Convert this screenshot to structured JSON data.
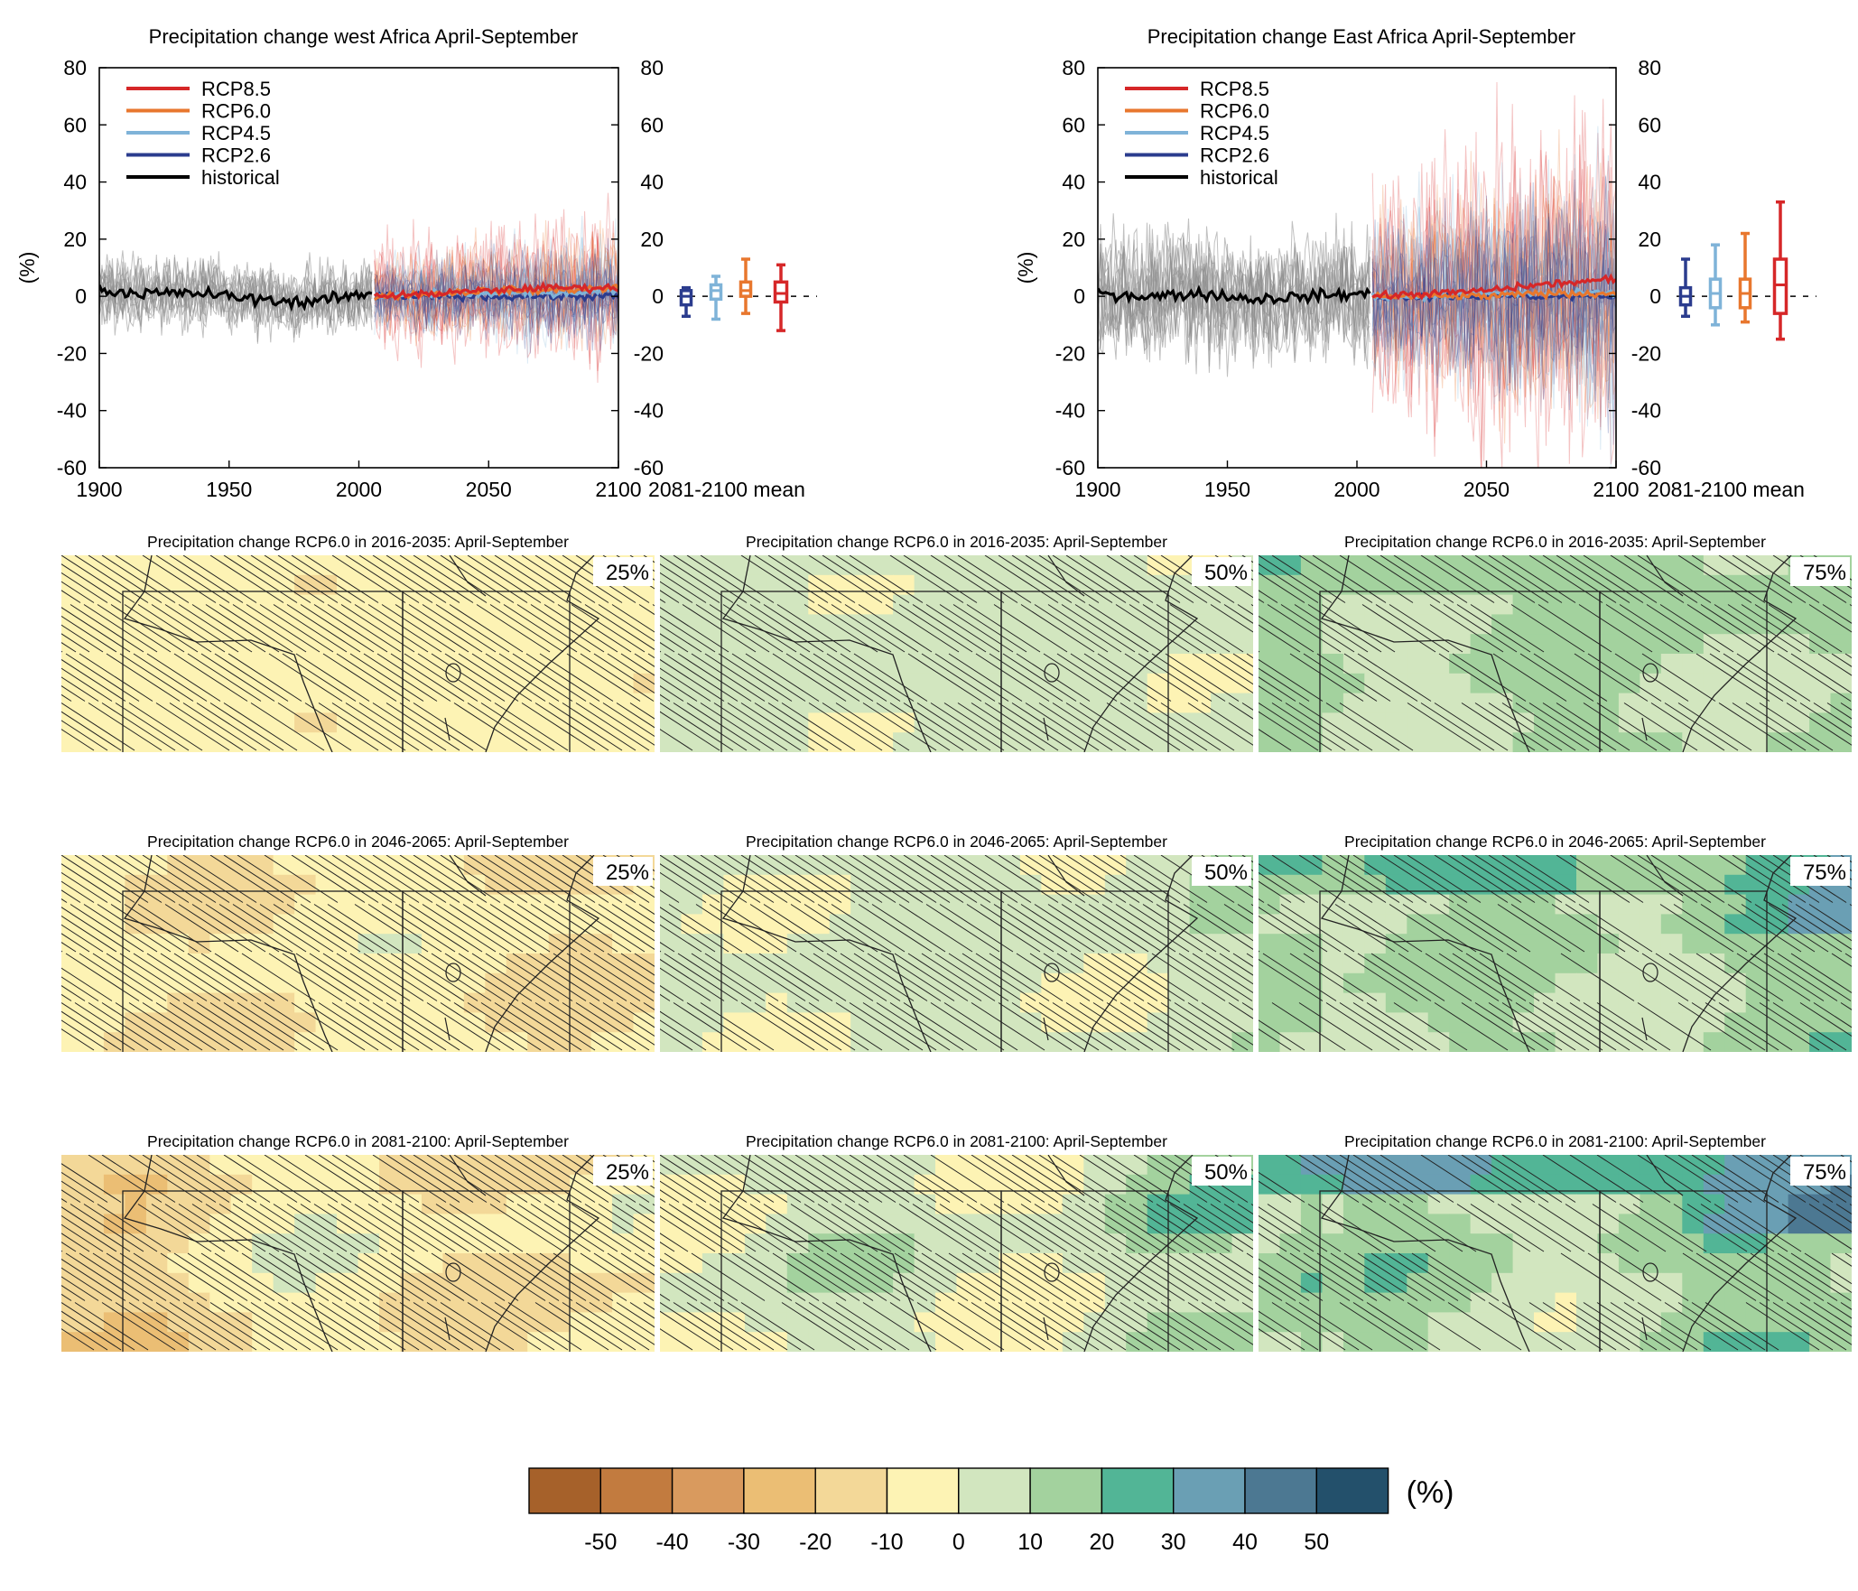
{
  "colors": {
    "rcp85": "#d62728",
    "rcp60": "#e8772e",
    "rcp45": "#7fb3d8",
    "rcp26": "#2b3c8e",
    "historical": "#000000",
    "ensemble": "#8c8c8c"
  },
  "colorbar": {
    "colors": [
      "#a6612a",
      "#c27b3f",
      "#d99a5e",
      "#ebbe74",
      "#f3d898",
      "#fdf3b4",
      "#d2e6bf",
      "#a3d29e",
      "#52b596",
      "#6a9fb4",
      "#4c7892",
      "#23506b"
    ],
    "ticks": [
      "-50",
      "-40",
      "-30",
      "-20",
      "-10",
      "0",
      "10",
      "20",
      "30",
      "40",
      "50"
    ],
    "unit": "(%)"
  },
  "timeseries_panels": [
    {
      "title": "Precipitation change west Africa April-September",
      "ylabel": "(%)",
      "yticks": [
        "80",
        "60",
        "40",
        "20",
        "0",
        "-20",
        "-40",
        "-60"
      ],
      "xticks": [
        "1900",
        "1950",
        "2000",
        "2050",
        "2100"
      ],
      "mean_label": "2081-2100 mean",
      "legend": [
        "RCP8.5",
        "RCP6.0",
        "RCP4.5",
        "RCP2.6",
        "historical"
      ]
    },
    {
      "title": "Precipitation change East Africa April-September",
      "ylabel": "(%)",
      "yticks": [
        "80",
        "60",
        "40",
        "20",
        "0",
        "-20",
        "-40",
        "-60"
      ],
      "xticks": [
        "1900",
        "1950",
        "2000",
        "2050",
        "2100"
      ],
      "mean_label": "2081-2100 mean",
      "legend": [
        "RCP8.5",
        "RCP6.0",
        "RCP4.5",
        "RCP2.6",
        "historical"
      ]
    }
  ],
  "map_titles": [
    "Precipitation change RCP6.0 in 2016-2035: April-September",
    "Precipitation change RCP6.0 in 2046-2065: April-September",
    "Precipitation change RCP6.0 in 2081-2100: April-September"
  ],
  "percentile_labels": [
    "25%",
    "50%",
    "75%"
  ],
  "chart_data": [
    {
      "type": "line",
      "title": "Precipitation change west Africa April-September",
      "xlabel": "",
      "ylabel": "(%)",
      "xlim": [
        1900,
        2100
      ],
      "ylim": [
        -60,
        80
      ],
      "legend_position": "top-left",
      "series": [
        {
          "name": "historical",
          "x": [
            1900,
            1920,
            1940,
            1960,
            1980,
            2005
          ],
          "y": [
            2,
            1,
            1,
            -1,
            -2,
            1
          ]
        },
        {
          "name": "RCP2.6",
          "x": [
            2006,
            2030,
            2050,
            2070,
            2100
          ],
          "y": [
            0,
            0,
            0,
            0,
            0
          ]
        },
        {
          "name": "RCP4.5",
          "x": [
            2006,
            2030,
            2050,
            2070,
            2100
          ],
          "y": [
            0,
            1,
            1,
            1,
            2
          ]
        },
        {
          "name": "RCP6.0",
          "x": [
            2006,
            2030,
            2050,
            2070,
            2100
          ],
          "y": [
            0,
            1,
            2,
            2,
            3
          ]
        },
        {
          "name": "RCP8.5",
          "x": [
            2006,
            2030,
            2050,
            2070,
            2100
          ],
          "y": [
            0,
            1,
            2,
            3,
            3
          ]
        }
      ],
      "box_2081_2100_mean": [
        {
          "name": "RCP2.6",
          "whisker_low": -7,
          "q1": -3,
          "median": 0,
          "q3": 2,
          "whisker_high": 3
        },
        {
          "name": "RCP4.5",
          "whisker_low": -8,
          "q1": -1,
          "median": 2,
          "q3": 4,
          "whisker_high": 7
        },
        {
          "name": "RCP6.0",
          "whisker_low": -6,
          "q1": 0,
          "median": 2,
          "q3": 5,
          "whisker_high": 13
        },
        {
          "name": "RCP8.5",
          "whisker_low": -12,
          "q1": -2,
          "median": 1,
          "q3": 5,
          "whisker_high": 11
        }
      ]
    },
    {
      "type": "line",
      "title": "Precipitation change East Africa April-September",
      "xlabel": "",
      "ylabel": "(%)",
      "xlim": [
        1900,
        2100
      ],
      "ylim": [
        -60,
        80
      ],
      "legend_position": "top-left",
      "series": [
        {
          "name": "historical",
          "x": [
            1900,
            1920,
            1940,
            1960,
            1980,
            2005
          ],
          "y": [
            1,
            0,
            1,
            -1,
            0,
            1
          ]
        },
        {
          "name": "RCP2.6",
          "x": [
            2006,
            2030,
            2050,
            2070,
            2100
          ],
          "y": [
            0,
            0,
            0,
            0,
            0
          ]
        },
        {
          "name": "RCP4.5",
          "x": [
            2006,
            2030,
            2050,
            2070,
            2100
          ],
          "y": [
            0,
            0,
            1,
            1,
            1
          ]
        },
        {
          "name": "RCP6.0",
          "x": [
            2006,
            2030,
            2050,
            2070,
            2100
          ],
          "y": [
            0,
            0,
            0,
            1,
            1
          ]
        },
        {
          "name": "RCP8.5",
          "x": [
            2006,
            2030,
            2050,
            2070,
            2100
          ],
          "y": [
            0,
            1,
            2,
            4,
            6
          ]
        }
      ],
      "box_2081_2100_mean": [
        {
          "name": "RCP2.6",
          "whisker_low": -7,
          "q1": -3,
          "median": 0,
          "q3": 3,
          "whisker_high": 13
        },
        {
          "name": "RCP4.5",
          "whisker_low": -10,
          "q1": -4,
          "median": 1,
          "q3": 6,
          "whisker_high": 18
        },
        {
          "name": "RCP6.0",
          "whisker_low": -9,
          "q1": -4,
          "median": 1,
          "q3": 6,
          "whisker_high": 22
        },
        {
          "name": "RCP8.5",
          "whisker_low": -15,
          "q1": -6,
          "median": 4,
          "q3": 13,
          "whisker_high": 33
        }
      ]
    },
    {
      "type": "heatmap",
      "title": "Precipitation change RCP6.0 in 2016-2035 / 2046-2065 / 2081-2100: April-September",
      "color_levels": [
        -50,
        -40,
        -30,
        -20,
        -10,
        0,
        10,
        20,
        30,
        40,
        50
      ],
      "unit": "(%)",
      "panels": [
        {
          "period": "2016-2035",
          "percentile": "25%",
          "dominant_range": [
            -10,
            0
          ]
        },
        {
          "period": "2016-2035",
          "percentile": "50%",
          "dominant_range": [
            0,
            10
          ]
        },
        {
          "period": "2016-2035",
          "percentile": "75%",
          "dominant_range": [
            0,
            20
          ]
        },
        {
          "period": "2046-2065",
          "percentile": "25%",
          "dominant_range": [
            -20,
            0
          ]
        },
        {
          "period": "2046-2065",
          "percentile": "50%",
          "dominant_range": [
            0,
            10
          ]
        },
        {
          "period": "2046-2065",
          "percentile": "75%",
          "dominant_range": [
            0,
            40
          ]
        },
        {
          "period": "2081-2100",
          "percentile": "25%",
          "dominant_range": [
            -30,
            0
          ]
        },
        {
          "period": "2081-2100",
          "percentile": "50%",
          "dominant_range": [
            -10,
            20
          ]
        },
        {
          "period": "2081-2100",
          "percentile": "75%",
          "dominant_range": [
            0,
            50
          ]
        }
      ]
    }
  ]
}
